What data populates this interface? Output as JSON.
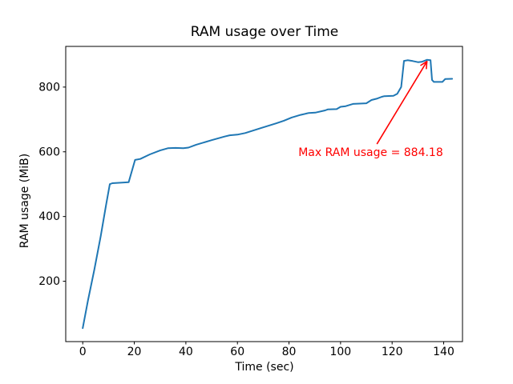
{
  "figure": {
    "background": "#ffffff",
    "spine_color": "#000000",
    "text_color": "#000000"
  },
  "chart_data": {
    "type": "line",
    "title": "RAM usage over Time",
    "xlabel": "Time (sec)",
    "ylabel": "RAM usage (MiB)",
    "xlim": [
      -6.6,
      147.3
    ],
    "ylim": [
      13.5,
      925.7
    ],
    "xticks": [
      0,
      20,
      40,
      60,
      80,
      100,
      120,
      140
    ],
    "yticks": [
      200,
      400,
      600,
      800
    ],
    "grid": false,
    "legend": null,
    "line_color": "#1f77b4",
    "series": [
      {
        "name": "RAM usage",
        "x": [
          0,
          2,
          4.5,
          7,
          9,
          10.5,
          11.5,
          17.8,
          20.3,
          22.3,
          26,
          30,
          33,
          36,
          39,
          41,
          44,
          50,
          55,
          57,
          60,
          63,
          69,
          75,
          78,
          81,
          84.5,
          87.7,
          90.2,
          94,
          95,
          98.5,
          100,
          102,
          104.8,
          110,
          112,
          114,
          116,
          117,
          120.5,
          122,
          123.5,
          124.6,
          126,
          128,
          130,
          131.5,
          133.5,
          134.9,
          135.5,
          136.2,
          139.5,
          140.6,
          143.3
        ],
        "y": [
          55,
          140,
          236,
          340,
          434,
          500,
          503,
          506,
          575,
          578,
          592,
          604,
          611,
          612,
          611,
          613,
          622,
          636,
          647,
          651,
          653,
          658,
          673,
          688,
          696,
          706,
          714,
          720,
          721,
          728,
          731,
          732,
          739,
          741,
          748,
          750,
          760,
          764,
          770,
          772,
          773,
          779,
          800,
          881,
          883,
          880.5,
          877,
          878,
          884.18,
          883,
          822,
          816,
          816,
          825,
          825.5
        ]
      }
    ],
    "annotation": {
      "text": "Max RAM usage = 884.18",
      "color": "#ff0000",
      "xy": [
        133.5,
        884.18
      ],
      "arrow_tail": [
        114.1,
        624
      ],
      "text_center": [
        111.7,
        596
      ]
    },
    "max_value": 884.18
  }
}
